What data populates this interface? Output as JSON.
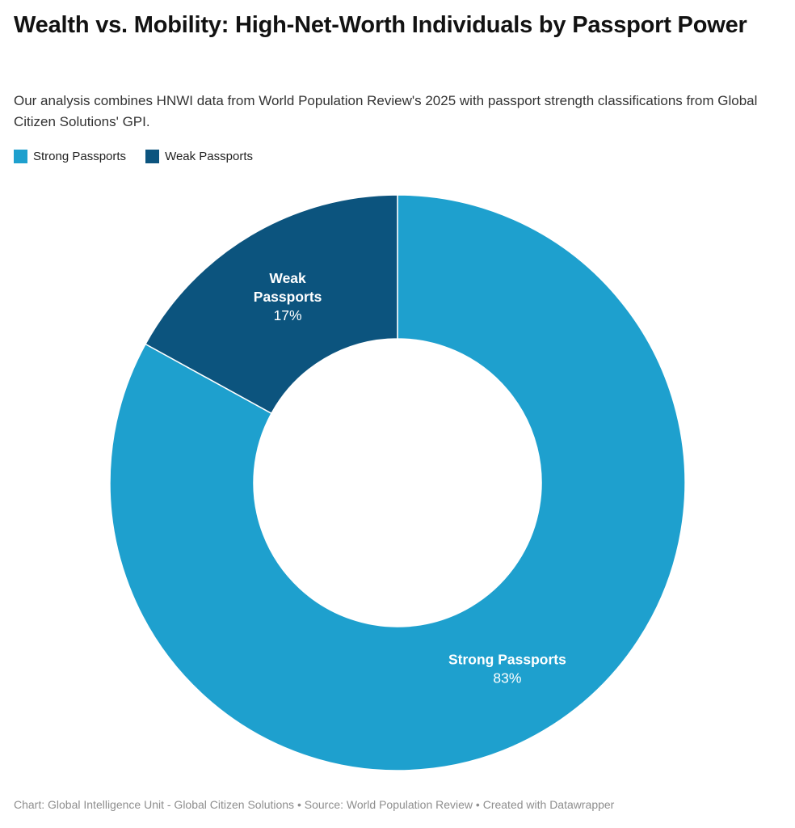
{
  "header": {
    "title": "Wealth vs. Mobility: High-Net-Worth Individuals by Passport Power",
    "subtitle": "Our analysis combines HNWI data from World Population Review's 2025 with passport strength classifications from Global Citizen Solutions' GPI."
  },
  "chart_data": {
    "type": "pie",
    "subtype": "donut",
    "title": "Wealth vs. Mobility: High-Net-Worth Individuals by Passport Power",
    "categories": [
      "Strong Passports",
      "Weak Passports"
    ],
    "values": [
      83,
      17
    ],
    "unit": "%",
    "start_angle_deg": 0,
    "direction": "clockwise",
    "inner_radius_ratio": 0.5,
    "legend_position": "top-left",
    "slice_label_color": "#FFFFFF",
    "divider_color": "#FFFFFF",
    "slices": [
      {
        "label": "Strong Passports",
        "value": 83,
        "pct_label": "83%",
        "label_lines": [
          "Strong Passports"
        ],
        "color": "#1EA0CE"
      },
      {
        "label": "Weak Passports",
        "value": 17,
        "pct_label": "17%",
        "label_lines": [
          "Weak",
          "Passports"
        ],
        "color": "#0C547E"
      }
    ]
  },
  "footer": {
    "text": "Chart: Global Intelligence Unit - Global Citizen Solutions • Source: World Population Review • Created with Datawrapper"
  }
}
